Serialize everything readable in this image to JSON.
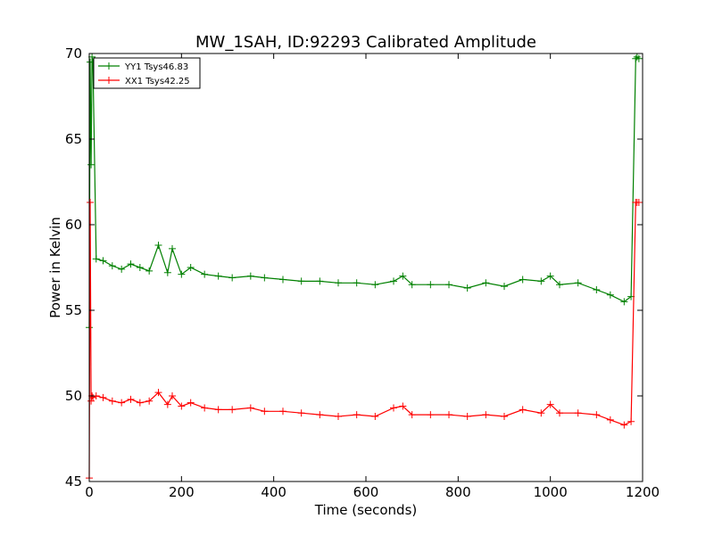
{
  "chart_data": {
    "type": "line",
    "title": "MW_1SAH, ID:92293 Calibrated Amplitude",
    "xlabel": "Time (seconds)",
    "ylabel": "Power in Kelvin",
    "xlim": [
      0,
      1200
    ],
    "ylim": [
      45,
      70
    ],
    "xticks": [
      0,
      200,
      400,
      600,
      800,
      1000,
      1200
    ],
    "yticks": [
      45,
      50,
      55,
      60,
      65,
      70
    ],
    "grid": false,
    "legend_position": "top-left",
    "marker": "plus",
    "series": [
      {
        "name": "YY1 Tsys46.83",
        "color": "#008000",
        "x": [
          0,
          2,
          4,
          6,
          8,
          15,
          30,
          50,
          70,
          90,
          110,
          130,
          150,
          170,
          180,
          200,
          220,
          250,
          280,
          310,
          350,
          380,
          420,
          460,
          500,
          540,
          580,
          620,
          660,
          680,
          700,
          740,
          780,
          820,
          860,
          900,
          940,
          980,
          1000,
          1020,
          1060,
          1100,
          1130,
          1160,
          1175,
          1185,
          1188,
          1192
        ],
        "y": [
          54,
          69.5,
          63.5,
          69.8,
          69.5,
          58,
          57.9,
          57.6,
          57.4,
          57.7,
          57.5,
          57.3,
          58.8,
          57.2,
          58.6,
          57.1,
          57.5,
          57.1,
          57.0,
          56.9,
          57.0,
          56.9,
          56.8,
          56.7,
          56.7,
          56.6,
          56.6,
          56.5,
          56.7,
          57.0,
          56.5,
          56.5,
          56.5,
          56.3,
          56.6,
          56.4,
          56.8,
          56.7,
          57.0,
          56.5,
          56.6,
          56.2,
          55.9,
          55.5,
          55.8,
          69.7,
          69.8,
          69.7
        ]
      },
      {
        "name": "XX1 Tsys42.25",
        "color": "#ff0000",
        "x": [
          0,
          2,
          4,
          6,
          8,
          15,
          30,
          50,
          70,
          90,
          110,
          130,
          150,
          170,
          180,
          200,
          220,
          250,
          280,
          310,
          350,
          380,
          420,
          460,
          500,
          540,
          580,
          620,
          660,
          680,
          700,
          740,
          780,
          820,
          860,
          900,
          940,
          980,
          1000,
          1020,
          1060,
          1100,
          1130,
          1160,
          1175,
          1185,
          1188,
          1192
        ],
        "y": [
          45.2,
          61.3,
          49.7,
          50.0,
          49.9,
          50.0,
          49.9,
          49.7,
          49.6,
          49.8,
          49.6,
          49.7,
          50.2,
          49.5,
          50.0,
          49.4,
          49.6,
          49.3,
          49.2,
          49.2,
          49.3,
          49.1,
          49.1,
          49.0,
          48.9,
          48.8,
          48.9,
          48.8,
          49.3,
          49.4,
          48.9,
          48.9,
          48.9,
          48.8,
          48.9,
          48.8,
          49.2,
          49.0,
          49.5,
          49.0,
          49.0,
          48.9,
          48.6,
          48.3,
          48.5,
          61.3,
          61.3,
          61.3
        ]
      }
    ]
  }
}
